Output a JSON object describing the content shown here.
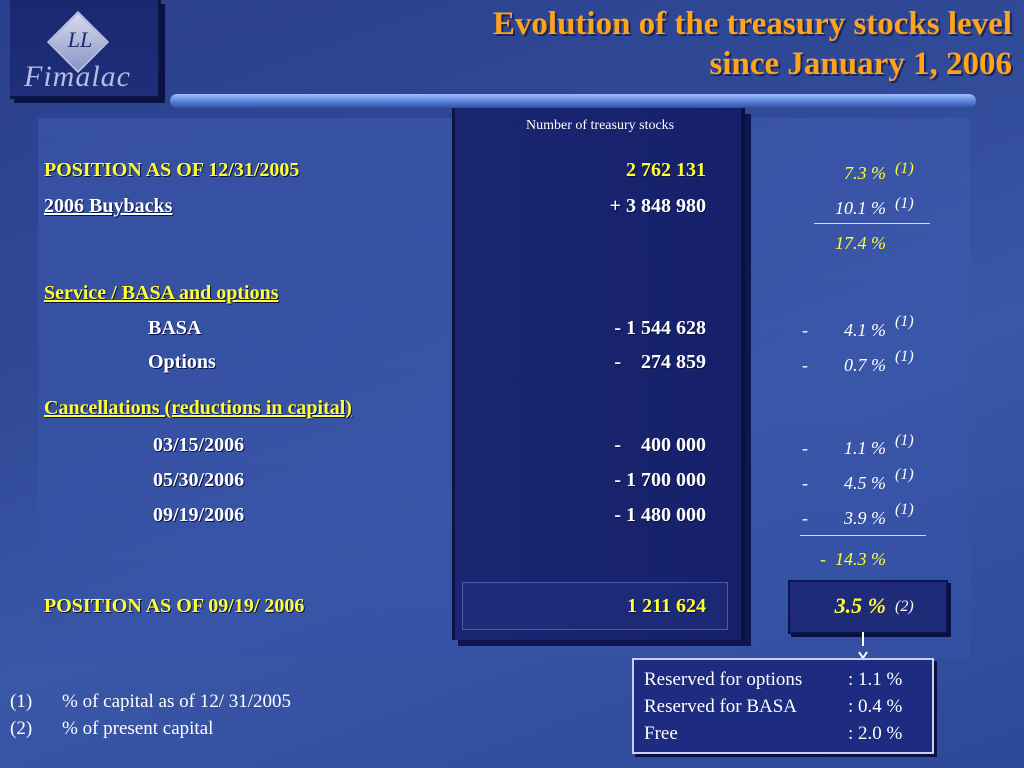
{
  "header": {
    "logo_text": "Fimalac",
    "logo_monogram": "LL",
    "title_line1": "Evolution of the treasury stocks level",
    "title_line2": "since January 1, 2006"
  },
  "column_header": "Number of treasury stocks",
  "rows": {
    "position_2005": {
      "label": "POSITION AS OF  12/31/2005",
      "number": "2 762 131",
      "percent": "7.3 %",
      "note": "(1)"
    },
    "buybacks": {
      "label": " 2006 Buybacks",
      "number": "+ 3 848 980",
      "percent": "10.1 %",
      "note": "(1)"
    },
    "subtotal": {
      "percent": "17.4 %"
    },
    "service_heading": {
      "label": "Service / BASA and options"
    },
    "basa": {
      "label": "BASA",
      "number": "- 1 544 628",
      "dash": "-",
      "percent": "4.1 %",
      "note": "(1)"
    },
    "options": {
      "label": "Options",
      "number": "-    274 859",
      "dash": "-",
      "percent": "0.7 %",
      "note": "(1)"
    },
    "cancellations_heading": {
      "label": "Cancellations (reductions in capital)"
    },
    "c1": {
      "label": "03/15/2006",
      "number": "-    400 000",
      "dash": "-",
      "percent": "1.1 %",
      "note": "(1)"
    },
    "c2": {
      "label": "05/30/2006",
      "number": "- 1 700 000",
      "dash": "-",
      "percent": "4.5 %",
      "note": "(1)"
    },
    "c3": {
      "label": "09/19/2006",
      "number": "- 1 480 000",
      "dash": "-",
      "percent": "3.9 %",
      "note": "(1)"
    },
    "total_reduction": {
      "percent": "-  14.3 %"
    },
    "position_2006": {
      "label": "POSITION AS OF  09/19/ 2006",
      "number": "1 211 624",
      "percent": "3.5 %",
      "note": "(2)"
    }
  },
  "breakdown": [
    {
      "label": "Reserved for options",
      "value": ": 1.1 %"
    },
    {
      "label": "Reserved for BASA",
      "value": ": 0.4 %"
    },
    {
      "label": "Free",
      "value": ": 2.0 %"
    }
  ],
  "footnotes": [
    {
      "marker": "(1)",
      "text": "% of capital as of  12/ 31/2005"
    },
    {
      "marker": "(2)",
      "text": "% of present capital"
    }
  ],
  "colors": {
    "title": "#ffa31a",
    "highlight": "#ffff33",
    "background": "#304a97",
    "column": "#1a2672"
  }
}
